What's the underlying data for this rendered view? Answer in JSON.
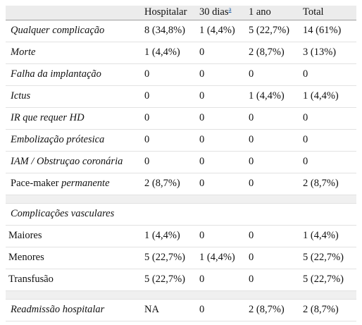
{
  "columns": {
    "hospital": "Hospitalar",
    "day30": "30 dias",
    "day30_note": "a",
    "year1": "1 ano",
    "total": "Total"
  },
  "rows": [
    {
      "label": "Qualquer complicação",
      "values": [
        "8 (34,8%)",
        "1 (4,4%)",
        "5 (22,7%)",
        "14 (61%)"
      ]
    },
    {
      "label": "Morte",
      "values": [
        "1 (4,4%)",
        "0",
        "2 (8,7%)",
        "3 (13%)"
      ]
    },
    {
      "label": "Falha da implantação",
      "values": [
        "0",
        "0",
        "0",
        "0"
      ]
    },
    {
      "label": "Ictus",
      "values": [
        "0",
        "0",
        "1 (4,4%)",
        "1 (4,4%)"
      ]
    },
    {
      "label": "IR que requer HD",
      "values": [
        "0",
        "0",
        "0",
        "0"
      ]
    },
    {
      "label": "Embolização prótesica",
      "values": [
        "0",
        "0",
        "0",
        "0"
      ]
    },
    {
      "label": "IAM / Obstruçao coronária",
      "values": [
        "0",
        "0",
        "0",
        "0"
      ]
    },
    {
      "label_plain": "Pace-maker ",
      "label_italic": "permanente",
      "values": [
        "2 (8,7%)",
        "0",
        "0",
        "2 (8,7%)"
      ]
    }
  ],
  "vascular": {
    "title": "Complicações vasculares",
    "rows": [
      {
        "label": "Maiores",
        "values": [
          "1 (4,4%)",
          "0",
          "0",
          "1 (4,4%)"
        ]
      },
      {
        "label": "Menores",
        "values": [
          "5 (22,7%)",
          "1 (4,4%)",
          "0",
          "5 (22,7%)"
        ]
      },
      {
        "label": "Transfusão",
        "values": [
          "5 (22,7%)",
          "0",
          "0",
          "5 (22,7%)"
        ]
      }
    ]
  },
  "readmission": {
    "label": "Readmissão hospitalar",
    "values": [
      "NA",
      "0",
      "2 (8,7%)",
      "2 (8,7%)"
    ]
  }
}
